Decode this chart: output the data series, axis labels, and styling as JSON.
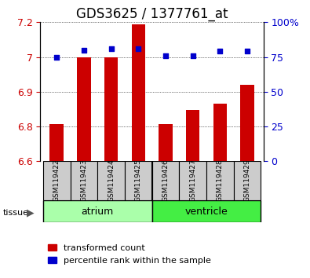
{
  "title": "GDS3625 / 1377761_at",
  "samples": [
    "GSM119422",
    "GSM119423",
    "GSM119424",
    "GSM119425",
    "GSM119426",
    "GSM119427",
    "GSM119428",
    "GSM119429"
  ],
  "transformed_count": [
    6.76,
    7.05,
    7.05,
    7.19,
    6.76,
    6.82,
    6.85,
    6.93
  ],
  "percentile_rank": [
    75,
    80,
    81,
    81,
    76,
    76,
    79,
    79
  ],
  "ylim_left": [
    6.6,
    7.2
  ],
  "ylim_right": [
    0,
    100
  ],
  "yticks_left": [
    6.6,
    6.75,
    6.9,
    7.05,
    7.2
  ],
  "yticks_right": [
    0,
    25,
    50,
    75,
    100
  ],
  "groups": [
    {
      "label": "atrium",
      "start": 0,
      "end": 3,
      "color": "#ccffcc",
      "border_color": "#00aa00"
    },
    {
      "label": "ventricle",
      "start": 4,
      "end": 7,
      "color": "#00dd00",
      "border_color": "#00aa00"
    }
  ],
  "bar_color": "#cc0000",
  "dot_color": "#0000cc",
  "tick_bg_color": "#cccccc",
  "left_tick_color": "#cc0000",
  "right_tick_color": "#0000cc",
  "title_fontsize": 12,
  "axis_fontsize": 9,
  "legend_fontsize": 8,
  "tissue_label": "tissue",
  "arrow_color": "#555555"
}
